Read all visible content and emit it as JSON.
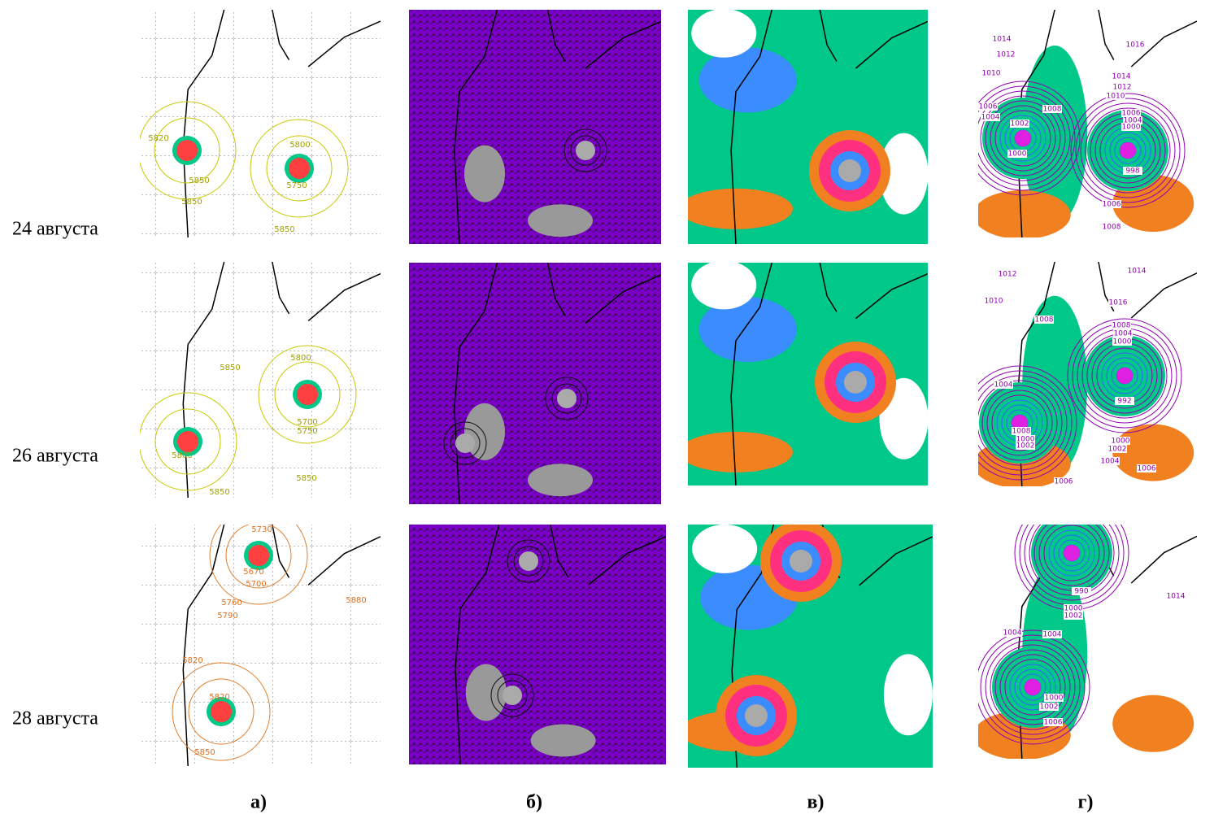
{
  "row_labels": [
    "24 августа",
    "26 августа",
    "28 августа"
  ],
  "column_labels": [
    "а)",
    "б)",
    "в)",
    "г)"
  ],
  "panels_a": [
    {
      "labels": [
        "5820",
        "5800",
        "5850",
        "5750",
        "5850",
        "5850"
      ]
    },
    {
      "labels": [
        "5850",
        "5800",
        "5700",
        "5750",
        "5800",
        "5850",
        "5850"
      ]
    },
    {
      "labels": [
        "5730",
        "5670",
        "5700",
        "5760",
        "5790",
        "5880",
        "5820",
        "5820",
        "5850"
      ]
    }
  ],
  "panels_g": [
    {
      "labels": [
        "1014",
        "1012",
        "1010",
        "1006",
        "1004",
        "1002",
        "1000",
        "1016",
        "1014",
        "1012",
        "1010",
        "1008",
        "1006",
        "1004",
        "1000",
        "998",
        "1006",
        "1008"
      ]
    },
    {
      "labels": [
        "1012",
        "1014",
        "1010",
        "1008",
        "1016",
        "1008",
        "1004",
        "1000",
        "992",
        "1004",
        "1008",
        "1000",
        "1002",
        "1000",
        "1002",
        "1004",
        "1006",
        "1006"
      ]
    },
    {
      "labels": [
        "990",
        "1000",
        "1002",
        "1004",
        "1004",
        "1014",
        "1000",
        "1002",
        "1006"
      ]
    }
  ]
}
